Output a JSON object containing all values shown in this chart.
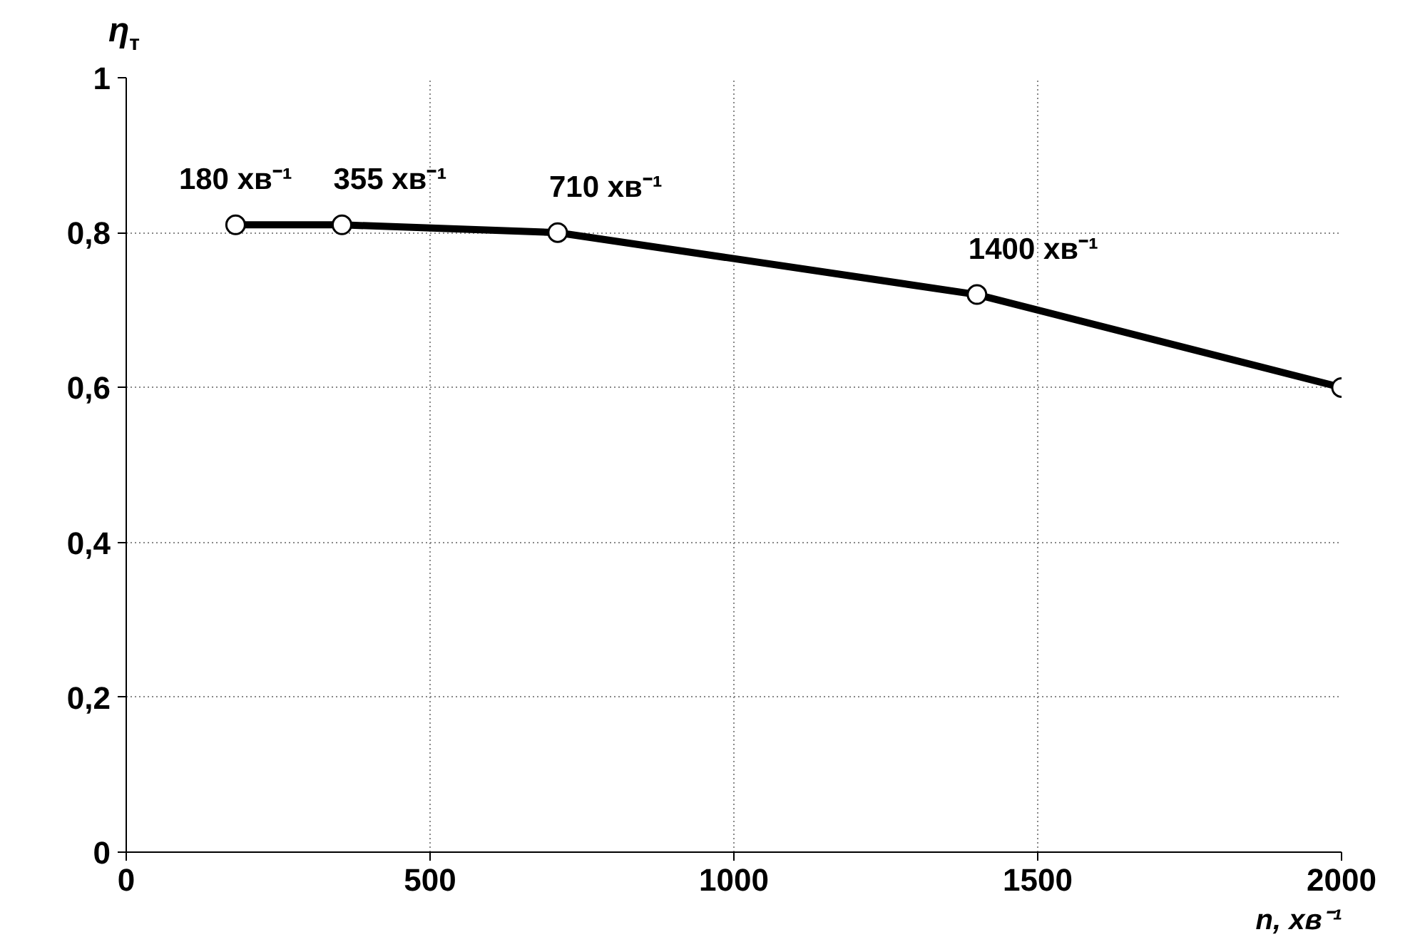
{
  "chart_data": {
    "type": "line",
    "xlabel": "n, хв⁻¹",
    "ylabel": "η$_{т}$",
    "x": [
      180,
      355,
      710,
      1400,
      2000
    ],
    "series": [
      {
        "color": "#000000",
        "values": [
          0.81,
          0.81,
          0.8,
          0.72,
          0.6
        ]
      }
    ],
    "xlim": [
      0,
      2000
    ],
    "ylim": [
      0,
      1
    ],
    "xticks": [
      0,
      500,
      1000,
      1500,
      2000
    ],
    "yticks": [
      0,
      {
        "value": 0.2,
        "label": "0,2"
      },
      {
        "value": 0.4,
        "label": "0,4"
      },
      {
        "value": 0.6,
        "label": "0,6"
      },
      {
        "value": 0.8,
        "label": "0,8"
      },
      1
    ],
    "grid": true,
    "marker": "circle",
    "line_style": "solid",
    "annotations": [
      {
        "text": "180 хв⁻¹",
        "x": 180,
        "y": 0.81
      },
      {
        "text": "355 хв⁻¹",
        "x": 355,
        "y": 0.81
      },
      {
        "text": "710 хв⁻¹",
        "x": 710,
        "y": 0.8
      },
      {
        "text": "1400 хв⁻¹",
        "x": 1400,
        "y": 0.72
      }
    ]
  }
}
